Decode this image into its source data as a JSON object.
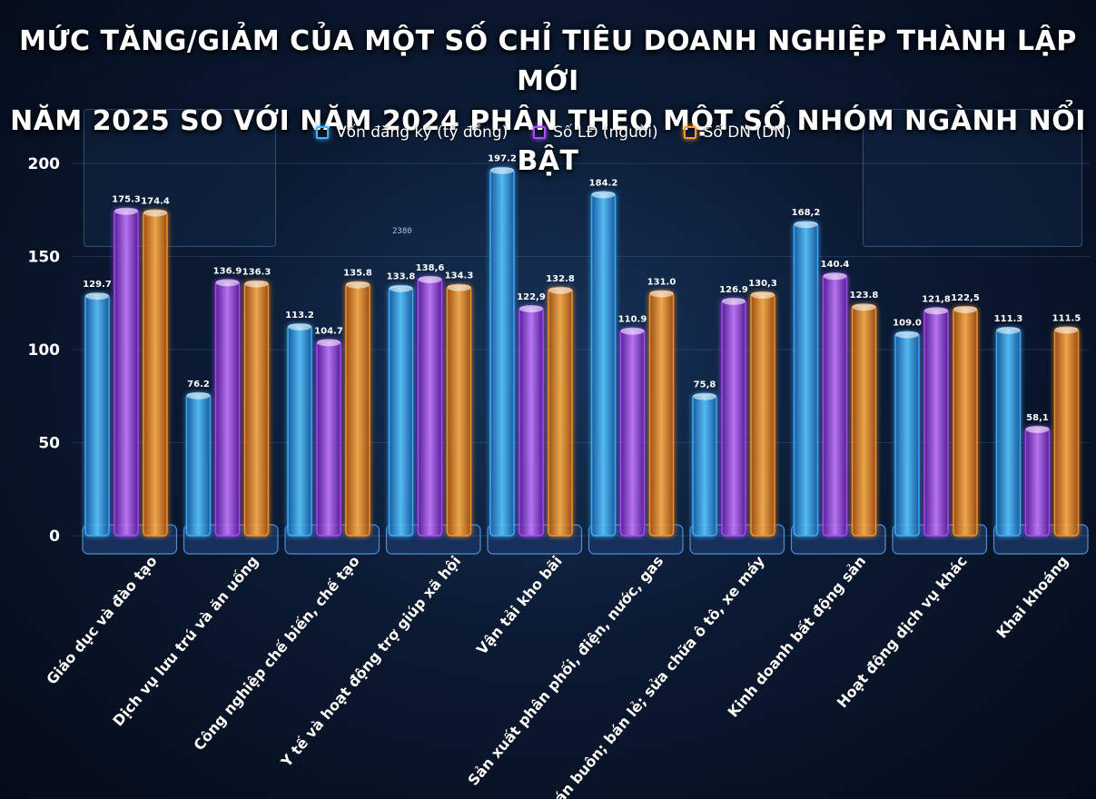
{
  "title": {
    "line1": "MỨC TĂNG/GIẢM CỦA MỘT SỐ CHỈ TIÊU DOANH NGHIỆP THÀNH LẬP MỚI",
    "line2": "NĂM 2025 SO VỚI NĂM 2024 PHÂN THEO MỘT SỐ NHÓM NGÀNH NỔI BẬT"
  },
  "decor": {
    "panel_number": "2380"
  },
  "colors": {
    "von": "#3fb6ff",
    "lao_dong": "#b24dff",
    "doanh_nghiep": "#ff9a2e"
  },
  "chart_data": {
    "type": "bar",
    "title": "MỨC TĂNG/GIẢM CỦA MỘT SỐ CHỈ TIÊU DOANH NGHIỆP THÀNH LẬP MỚI NĂM 2025 SO VỚI NĂM 2024 PHÂN THEO MỘT SỐ NHÓM NGÀNH NỔI BẬT",
    "legend_position": "top",
    "ylim": [
      0,
      200
    ],
    "yticks": [
      "0",
      "50",
      "100",
      "150",
      "200"
    ],
    "categories": [
      "Giáo dục và đào tạo",
      "Dịch vụ lưu trú và ăn uống",
      "Công nghiệp chế biến, chế tạo",
      "Y tế và hoạt động trợ giúp xã hội",
      "Vận tải kho bãi",
      "Sản xuất phân phối, điện, nước, gas",
      "Bán buôn; bán lẻ; sửa chữa ô tô, xe máy",
      "Kinh doanh bất động sản",
      "Hoạt động dịch vụ khác",
      "Khai khoáng"
    ],
    "series": [
      {
        "name": "Vốn đăng ký (tỷ đồng)",
        "values": [
          129.7,
          76.2,
          113.2,
          133.8,
          197.2,
          184.2,
          75.8,
          168.2,
          109.0,
          111.3
        ],
        "labels": [
          "129.7",
          "76.2",
          "113.2",
          "133.8",
          "197.2",
          "184.2",
          "75,8",
          "168,2",
          "109.0",
          "111.3"
        ]
      },
      {
        "name": "Số LĐ (người)",
        "values": [
          175.3,
          136.9,
          104.7,
          138.6,
          122.9,
          110.9,
          126.9,
          140.4,
          121.8,
          58.1
        ],
        "labels": [
          "175.3",
          "136.9",
          "104.7",
          "138,6",
          "122,9",
          "110.9",
          "126.9",
          "140.4",
          "121,8",
          "58,1"
        ]
      },
      {
        "name": "Số DN (DN)",
        "values": [
          174.4,
          136.3,
          135.8,
          134.3,
          132.8,
          131.0,
          130.3,
          123.8,
          122.5,
          111.5
        ],
        "labels": [
          "174.4",
          "136.3",
          "135.8",
          "134.3",
          "132.8",
          "131.0",
          "130,3",
          "123.8",
          "122,5",
          "111.5"
        ]
      }
    ]
  }
}
